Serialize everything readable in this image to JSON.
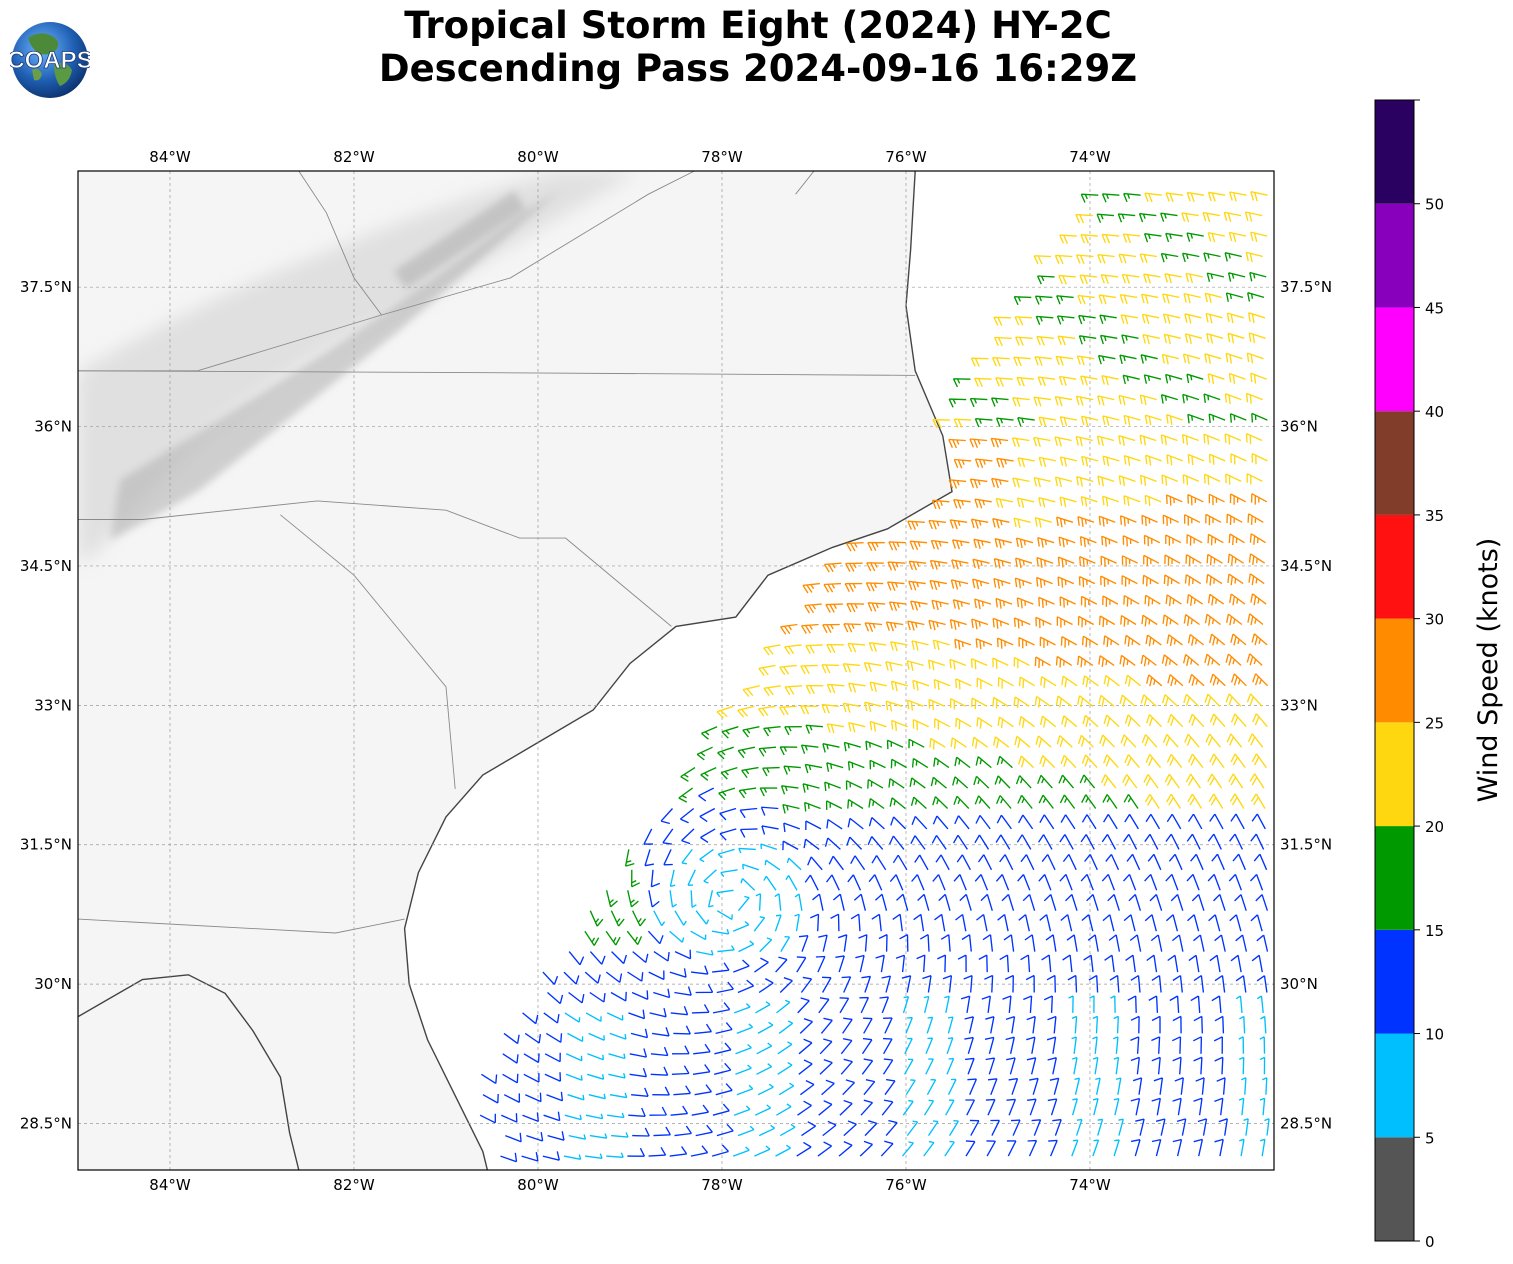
{
  "header": {
    "title_line1": "Tropical Storm Eight (2024) HY-2C",
    "title_line2": "Descending Pass 2024-09-16 16:29Z",
    "logo_text": "COAPS"
  },
  "map": {
    "extent": {
      "lon_min": -85.0,
      "lon_max": -72.0,
      "lat_min": 28.0,
      "lat_max": 38.75
    },
    "lon_ticks": [
      {
        "value": -84,
        "label": "84°W"
      },
      {
        "value": -82,
        "label": "82°W"
      },
      {
        "value": -80,
        "label": "80°W"
      },
      {
        "value": -78,
        "label": "78°W"
      },
      {
        "value": -76,
        "label": "76°W"
      },
      {
        "value": -74,
        "label": "74°W"
      }
    ],
    "lat_ticks": [
      {
        "value": 37.5,
        "label": "37.5°N"
      },
      {
        "value": 36.0,
        "label": "36°N"
      },
      {
        "value": 34.5,
        "label": "34.5°N"
      },
      {
        "value": 33.0,
        "label": "33°N"
      },
      {
        "value": 31.5,
        "label": "31.5°N"
      },
      {
        "value": 30.0,
        "label": "30°N"
      },
      {
        "value": 28.5,
        "label": "28.5°N"
      }
    ],
    "gridlines": true,
    "storm_center": {
      "lon": -77.9,
      "lat": 30.9
    },
    "coastline": [
      [
        -75.9,
        38.75
      ],
      [
        -75.95,
        37.9
      ],
      [
        -76.0,
        37.3
      ],
      [
        -75.9,
        36.6
      ],
      [
        -75.6,
        35.9
      ],
      [
        -75.5,
        35.3
      ],
      [
        -76.2,
        34.9
      ],
      [
        -76.8,
        34.7
      ],
      [
        -77.5,
        34.4
      ],
      [
        -77.85,
        33.95
      ],
      [
        -78.5,
        33.85
      ],
      [
        -79.0,
        33.45
      ],
      [
        -79.4,
        32.95
      ],
      [
        -80.0,
        32.6
      ],
      [
        -80.6,
        32.25
      ],
      [
        -81.0,
        31.8
      ],
      [
        -81.3,
        31.2
      ],
      [
        -81.45,
        30.6
      ],
      [
        -81.4,
        30.0
      ],
      [
        -81.2,
        29.4
      ],
      [
        -80.9,
        28.8
      ],
      [
        -80.6,
        28.2
      ],
      [
        -80.55,
        28.0
      ]
    ],
    "gulf_coast": [
      [
        -85.0,
        29.65
      ],
      [
        -84.3,
        30.05
      ],
      [
        -83.8,
        30.1
      ],
      [
        -83.4,
        29.9
      ],
      [
        -83.1,
        29.5
      ],
      [
        -82.8,
        29.0
      ],
      [
        -82.7,
        28.4
      ],
      [
        -82.6,
        28.0
      ]
    ],
    "state_borders": [
      [
        [
          -85.0,
          36.6
        ],
        [
          -80.5,
          36.58
        ],
        [
          -75.9,
          36.55
        ]
      ],
      [
        [
          -85.0,
          35.0
        ],
        [
          -84.3,
          35.0
        ],
        [
          -82.4,
          35.2
        ],
        [
          -81.0,
          35.1
        ],
        [
          -80.2,
          34.8
        ],
        [
          -79.7,
          34.8
        ],
        [
          -78.55,
          33.85
        ]
      ],
      [
        [
          -82.8,
          35.05
        ],
        [
          -82.0,
          34.4
        ],
        [
          -81.5,
          33.8
        ],
        [
          -81.0,
          33.2
        ],
        [
          -80.9,
          32.1
        ]
      ],
      [
        [
          -85.0,
          30.7
        ],
        [
          -82.2,
          30.55
        ],
        [
          -81.45,
          30.7
        ]
      ],
      [
        [
          -85.0,
          36.6
        ],
        [
          -83.7,
          36.6
        ],
        [
          -81.7,
          37.2
        ],
        [
          -80.3,
          37.6
        ],
        [
          -78.8,
          38.5
        ],
        [
          -78.3,
          38.75
        ]
      ],
      [
        [
          -82.6,
          38.75
        ],
        [
          -82.3,
          38.3
        ],
        [
          -82.0,
          37.6
        ],
        [
          -81.7,
          37.2
        ]
      ],
      [
        [
          -77.0,
          38.75
        ],
        [
          -77.2,
          38.5
        ]
      ]
    ],
    "terrain_note": "Appalachians",
    "wind_barbs_note": "wind barbs generated by a swirl model around the storm center",
    "barb_color_scale": [
      {
        "min": 0,
        "max": 5,
        "color": "#555555"
      },
      {
        "min": 5,
        "max": 10,
        "color": "#00bfff"
      },
      {
        "min": 10,
        "max": 15,
        "color": "#0033ff"
      },
      {
        "min": 15,
        "max": 20,
        "color": "#009900"
      },
      {
        "min": 20,
        "max": 25,
        "color": "#ffd711"
      },
      {
        "min": 25,
        "max": 30,
        "color": "#ff8c00"
      },
      {
        "min": 30,
        "max": 35,
        "color": "#ff1111"
      },
      {
        "min": 35,
        "max": 40,
        "color": "#813c2a"
      },
      {
        "min": 40,
        "max": 45,
        "color": "#ff00ff"
      },
      {
        "min": 45,
        "max": 50,
        "color": "#8800bb"
      },
      {
        "min": 50,
        "max": 55,
        "color": "#2a0060"
      }
    ]
  },
  "colorbar": {
    "label": "Wind Speed (knots)",
    "tick_labels": [
      "0",
      "5",
      "10",
      "15",
      "20",
      "25",
      "30",
      "35",
      "40",
      "45",
      "50"
    ]
  }
}
